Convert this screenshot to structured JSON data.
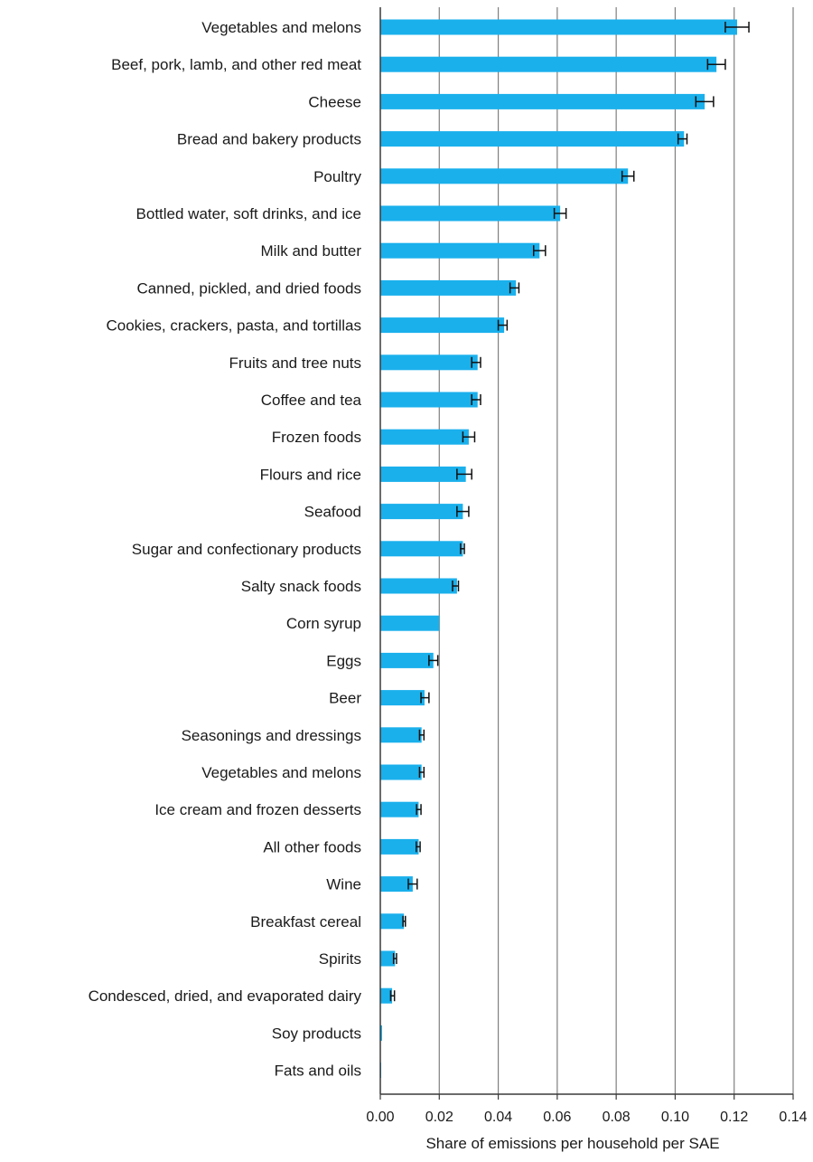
{
  "chart_data": {
    "type": "bar",
    "orientation": "horizontal",
    "error_bars": true,
    "grid": "vertical",
    "legend": "none",
    "xlabel": "Share of emissions per household per SAE",
    "ylabel": "",
    "title": "",
    "xlim": [
      0,
      0.14
    ],
    "x_ticks": [
      "0.00",
      "0.02",
      "0.04",
      "0.06",
      "0.08",
      "0.10",
      "0.12",
      "0.14"
    ],
    "colors": {
      "bar": "#1ab0ec",
      "grid": "#7f7f7f",
      "axis": "#3a3a3a",
      "error_bar": "#111111"
    },
    "categories": [
      "Vegetables and melons",
      "Beef, pork, lamb, and other red meat",
      "Cheese",
      "Bread and bakery products",
      "Poultry",
      "Bottled water, soft drinks, and ice",
      "Milk and butter",
      "Canned, pickled, and dried foods",
      "Cookies, crackers, pasta, and tortillas",
      "Fruits and tree nuts",
      "Coffee and tea",
      "Frozen foods",
      "Flours and rice",
      "Seafood",
      "Sugar and confectionary products",
      "Salty snack foods",
      "Corn syrup",
      "Eggs",
      "Beer",
      "Seasonings and dressings",
      "Vegetables and melons",
      "Ice cream and frozen desserts",
      "All other foods",
      "Wine",
      "Breakfast cereal",
      "Spirits",
      "Condesced, dried, and evaporated dairy",
      "Soy products",
      "Fats and oils"
    ],
    "values": [
      0.121,
      0.114,
      0.11,
      0.103,
      0.084,
      0.061,
      0.054,
      0.046,
      0.042,
      0.033,
      0.033,
      0.03,
      0.029,
      0.028,
      0.028,
      0.026,
      0.02,
      0.018,
      0.015,
      0.014,
      0.014,
      0.013,
      0.013,
      0.011,
      0.008,
      0.005,
      0.004,
      0.0006,
      0.0003
    ],
    "error_low": [
      0.117,
      0.111,
      0.107,
      0.101,
      0.082,
      0.059,
      0.052,
      0.044,
      0.04,
      0.031,
      0.031,
      0.028,
      0.026,
      0.026,
      0.0272,
      0.0245,
      null,
      0.0165,
      0.0138,
      0.0133,
      0.0133,
      0.0123,
      0.0122,
      0.0095,
      0.0077,
      0.0045,
      0.0035,
      null,
      null
    ],
    "error_high": [
      0.125,
      0.117,
      0.113,
      0.104,
      0.086,
      0.063,
      0.056,
      0.047,
      0.043,
      0.034,
      0.034,
      0.032,
      0.031,
      0.03,
      0.0285,
      0.0265,
      null,
      0.0195,
      0.0165,
      0.0148,
      0.0148,
      0.0138,
      0.0135,
      0.0125,
      0.0085,
      0.0055,
      0.0048,
      null,
      null
    ]
  }
}
